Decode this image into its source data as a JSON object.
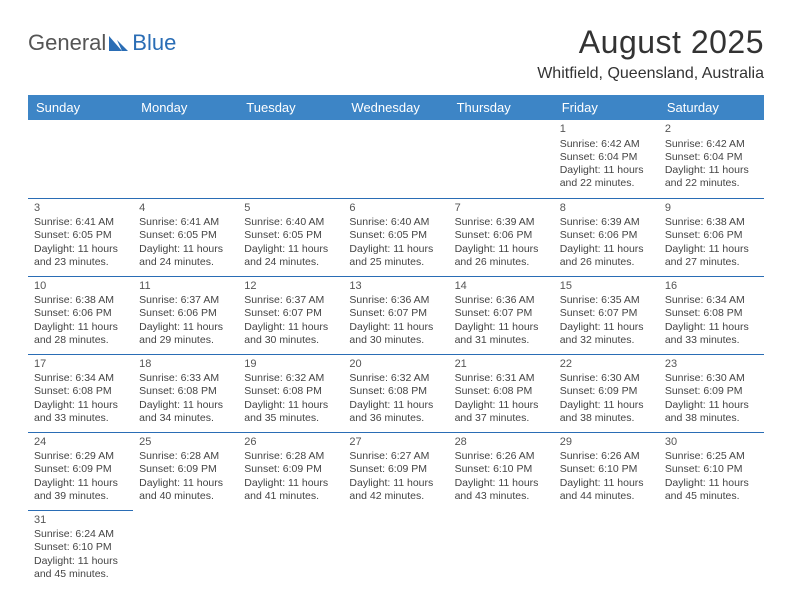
{
  "logo": {
    "text1": "General",
    "text2": "Blue"
  },
  "title": "August 2025",
  "location": "Whitfield, Queensland, Australia",
  "colors": {
    "header_bg": "#3d85c6",
    "header_text": "#ffffff",
    "cell_border": "#2a6db5",
    "body_text": "#444444",
    "title_text": "#333333",
    "logo_gray": "#555555",
    "logo_blue": "#2a6db5",
    "background": "#ffffff"
  },
  "day_headers": [
    "Sunday",
    "Monday",
    "Tuesday",
    "Wednesday",
    "Thursday",
    "Friday",
    "Saturday"
  ],
  "weeks": [
    [
      null,
      null,
      null,
      null,
      null,
      {
        "n": "1",
        "sr": "6:42 AM",
        "ss": "6:04 PM",
        "dl": "11 hours and 22 minutes."
      },
      {
        "n": "2",
        "sr": "6:42 AM",
        "ss": "6:04 PM",
        "dl": "11 hours and 22 minutes."
      }
    ],
    [
      {
        "n": "3",
        "sr": "6:41 AM",
        "ss": "6:05 PM",
        "dl": "11 hours and 23 minutes."
      },
      {
        "n": "4",
        "sr": "6:41 AM",
        "ss": "6:05 PM",
        "dl": "11 hours and 24 minutes."
      },
      {
        "n": "5",
        "sr": "6:40 AM",
        "ss": "6:05 PM",
        "dl": "11 hours and 24 minutes."
      },
      {
        "n": "6",
        "sr": "6:40 AM",
        "ss": "6:05 PM",
        "dl": "11 hours and 25 minutes."
      },
      {
        "n": "7",
        "sr": "6:39 AM",
        "ss": "6:06 PM",
        "dl": "11 hours and 26 minutes."
      },
      {
        "n": "8",
        "sr": "6:39 AM",
        "ss": "6:06 PM",
        "dl": "11 hours and 26 minutes."
      },
      {
        "n": "9",
        "sr": "6:38 AM",
        "ss": "6:06 PM",
        "dl": "11 hours and 27 minutes."
      }
    ],
    [
      {
        "n": "10",
        "sr": "6:38 AM",
        "ss": "6:06 PM",
        "dl": "11 hours and 28 minutes."
      },
      {
        "n": "11",
        "sr": "6:37 AM",
        "ss": "6:06 PM",
        "dl": "11 hours and 29 minutes."
      },
      {
        "n": "12",
        "sr": "6:37 AM",
        "ss": "6:07 PM",
        "dl": "11 hours and 30 minutes."
      },
      {
        "n": "13",
        "sr": "6:36 AM",
        "ss": "6:07 PM",
        "dl": "11 hours and 30 minutes."
      },
      {
        "n": "14",
        "sr": "6:36 AM",
        "ss": "6:07 PM",
        "dl": "11 hours and 31 minutes."
      },
      {
        "n": "15",
        "sr": "6:35 AM",
        "ss": "6:07 PM",
        "dl": "11 hours and 32 minutes."
      },
      {
        "n": "16",
        "sr": "6:34 AM",
        "ss": "6:08 PM",
        "dl": "11 hours and 33 minutes."
      }
    ],
    [
      {
        "n": "17",
        "sr": "6:34 AM",
        "ss": "6:08 PM",
        "dl": "11 hours and 33 minutes."
      },
      {
        "n": "18",
        "sr": "6:33 AM",
        "ss": "6:08 PM",
        "dl": "11 hours and 34 minutes."
      },
      {
        "n": "19",
        "sr": "6:32 AM",
        "ss": "6:08 PM",
        "dl": "11 hours and 35 minutes."
      },
      {
        "n": "20",
        "sr": "6:32 AM",
        "ss": "6:08 PM",
        "dl": "11 hours and 36 minutes."
      },
      {
        "n": "21",
        "sr": "6:31 AM",
        "ss": "6:08 PM",
        "dl": "11 hours and 37 minutes."
      },
      {
        "n": "22",
        "sr": "6:30 AM",
        "ss": "6:09 PM",
        "dl": "11 hours and 38 minutes."
      },
      {
        "n": "23",
        "sr": "6:30 AM",
        "ss": "6:09 PM",
        "dl": "11 hours and 38 minutes."
      }
    ],
    [
      {
        "n": "24",
        "sr": "6:29 AM",
        "ss": "6:09 PM",
        "dl": "11 hours and 39 minutes."
      },
      {
        "n": "25",
        "sr": "6:28 AM",
        "ss": "6:09 PM",
        "dl": "11 hours and 40 minutes."
      },
      {
        "n": "26",
        "sr": "6:28 AM",
        "ss": "6:09 PM",
        "dl": "11 hours and 41 minutes."
      },
      {
        "n": "27",
        "sr": "6:27 AM",
        "ss": "6:09 PM",
        "dl": "11 hours and 42 minutes."
      },
      {
        "n": "28",
        "sr": "6:26 AM",
        "ss": "6:10 PM",
        "dl": "11 hours and 43 minutes."
      },
      {
        "n": "29",
        "sr": "6:26 AM",
        "ss": "6:10 PM",
        "dl": "11 hours and 44 minutes."
      },
      {
        "n": "30",
        "sr": "6:25 AM",
        "ss": "6:10 PM",
        "dl": "11 hours and 45 minutes."
      }
    ],
    [
      {
        "n": "31",
        "sr": "6:24 AM",
        "ss": "6:10 PM",
        "dl": "11 hours and 45 minutes."
      },
      null,
      null,
      null,
      null,
      null,
      null
    ]
  ],
  "labels": {
    "sunrise": "Sunrise:",
    "sunset": "Sunset:",
    "daylight": "Daylight:"
  }
}
